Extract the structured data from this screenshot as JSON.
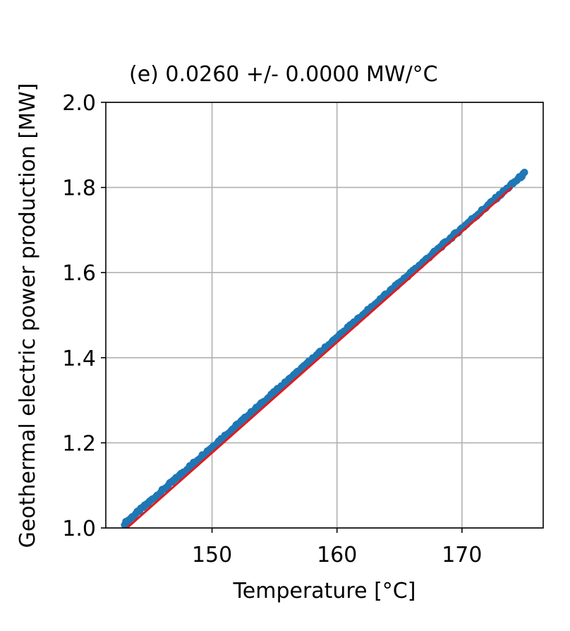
{
  "chart_data": {
    "type": "scatter",
    "title": "(e)   0.0260 +/- 0.0000  MW/°C",
    "xlabel": "Temperature [°C]",
    "ylabel": "Geothermal electric power production [MW]",
    "xlim": [
      141.5,
      176.5
    ],
    "ylim": [
      1.0,
      2.0
    ],
    "xticks": [
      150,
      160,
      170
    ],
    "xtick_labels": [
      "150",
      "160",
      "170"
    ],
    "yticks": [
      1.0,
      1.2,
      1.4,
      1.6,
      1.8,
      2.0
    ],
    "ytick_labels": [
      "1.0",
      "1.2",
      "1.4",
      "1.6",
      "1.8",
      "2.0"
    ],
    "grid": true,
    "series": [
      {
        "kind": "points",
        "color": "#1f77b4",
        "x_range": [
          143.0,
          175.0
        ],
        "y_range": [
          1.01,
          1.833
        ]
      },
      {
        "kind": "fit-line",
        "color": "#e31a1c",
        "x": [
          143.2,
          174.0
        ],
        "y": [
          1.0,
          1.8
        ],
        "slope": 0.026
      }
    ]
  }
}
